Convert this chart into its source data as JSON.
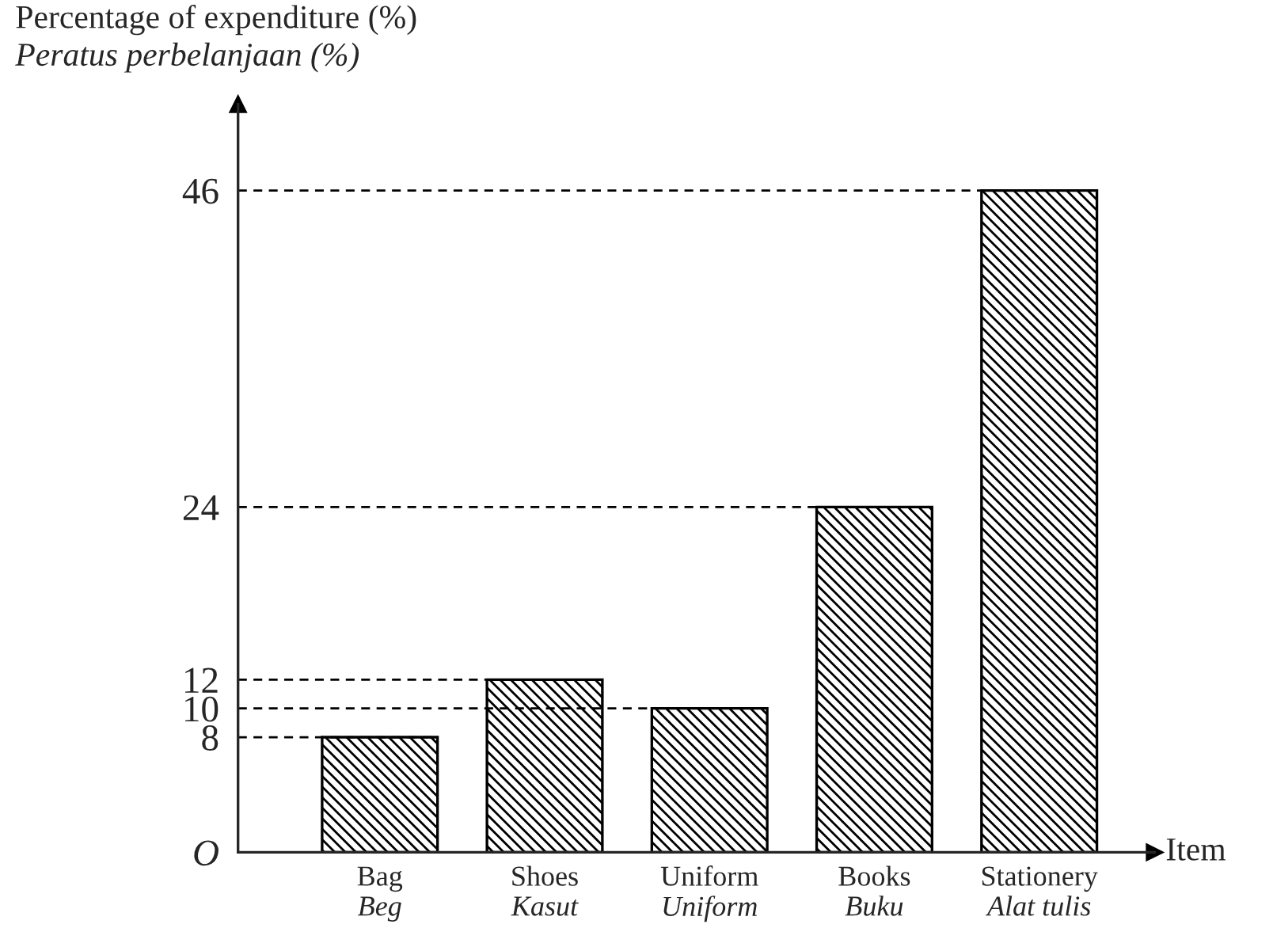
{
  "chart_data": {
    "type": "bar",
    "ylabel": "Percentage of expenditure (%)\nPeratus perbelanjaan (%)",
    "xlabel": "Item",
    "categories": [
      "Bag\nBeg",
      "Shoes\nKasut",
      "Uniform\nUniform",
      "Books\nBuku",
      "Stationery\nAlat tulis"
    ],
    "values": [
      8,
      12,
      10,
      24,
      46
    ],
    "color": "#000000",
    "ref_lines": [
      {
        "axis": "y",
        "value": 8,
        "line_style": "dashed"
      },
      {
        "axis": "y",
        "value": 10,
        "line_style": "dashed"
      },
      {
        "axis": "y",
        "value": 12,
        "line_style": "dashed"
      },
      {
        "axis": "y",
        "value": 24,
        "line_style": "dashed"
      },
      {
        "axis": "y",
        "value": 46,
        "line_style": "dashed"
      }
    ],
    "ylim": [
      0,
      52
    ],
    "yticks": [
      {
        "value": 0,
        "label": "O"
      },
      8,
      10,
      12,
      24,
      46
    ],
    "grid": false
  }
}
